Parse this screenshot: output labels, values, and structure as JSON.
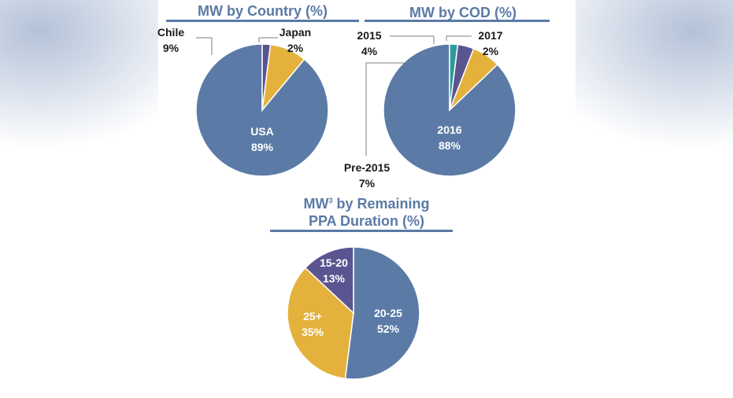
{
  "chart_data": [
    {
      "type": "pie",
      "title": "MW by Country (%)",
      "slices": [
        {
          "label": "USA",
          "value": 89,
          "display": "89%",
          "color": "#5b7ba6"
        },
        {
          "label": "Chile",
          "value": 9,
          "display": "9%",
          "color": "#e4b23c"
        },
        {
          "label": "Japan",
          "value": 2,
          "display": "2%",
          "color": "#5a5590"
        }
      ]
    },
    {
      "type": "pie",
      "title": "MW by COD (%)",
      "slices": [
        {
          "label": "2016",
          "value": 88,
          "display": "88%",
          "color": "#5b7ba6"
        },
        {
          "label": "Pre-2015",
          "value": 7,
          "display": "7%",
          "color": "#e4b23c"
        },
        {
          "label": "2015",
          "value": 4,
          "display": "4%",
          "color": "#5a5590"
        },
        {
          "label": "2017",
          "value": 2,
          "display": "2%",
          "color": "#2e9a9a"
        }
      ]
    },
    {
      "type": "pie",
      "title_line1": "MW",
      "title_sup": "3",
      "title_line1_rest": " by Remaining",
      "title_line2": "PPA Duration (%)",
      "slices": [
        {
          "label": "20-25",
          "value": 52,
          "display": "52%",
          "color": "#5b7ba6"
        },
        {
          "label": "25+",
          "value": 35,
          "display": "35%",
          "color": "#e4b23c"
        },
        {
          "label": "15-20",
          "value": 13,
          "display": "13%",
          "color": "#5a5590"
        }
      ]
    }
  ]
}
